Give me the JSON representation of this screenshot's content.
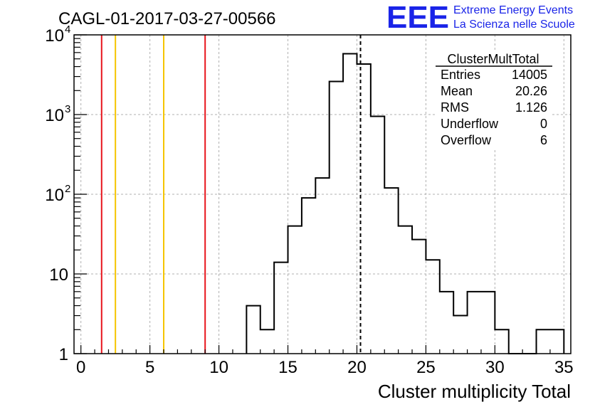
{
  "header": {
    "run_title": "CAGL-01-2017-03-27-00566",
    "logo_text": "EEE",
    "project_line1": "Extreme Energy Events",
    "project_line2": "La Scienza nelle Scuole"
  },
  "stats_box": {
    "title": "ClusterMultTotal",
    "rows": [
      {
        "label": "Entries",
        "value": "14005"
      },
      {
        "label": "Mean",
        "value": "20.26"
      },
      {
        "label": "RMS",
        "value": "1.126"
      },
      {
        "label": "Underflow",
        "value": "0"
      },
      {
        "label": "Overflow",
        "value": "6"
      }
    ]
  },
  "colors": {
    "histogram": "#000000",
    "grid": "#b0b0b0",
    "red_lines": "#e8141c",
    "yellow_lines": "#f5c400",
    "mean_line": "#000000",
    "logo": "#1a24e8",
    "project_text": "#1a24e8"
  },
  "chart_data": {
    "type": "histogram",
    "xlabel": "Cluster multiplicity Total",
    "ylabel": "",
    "xlim": [
      -0.5,
      35.5
    ],
    "ylim": [
      1,
      10000
    ],
    "log_y": true,
    "grid": true,
    "bin_width": 1,
    "bins": [
      {
        "x": 12.5,
        "count": 4
      },
      {
        "x": 13.5,
        "count": 2
      },
      {
        "x": 14.5,
        "count": 14
      },
      {
        "x": 15.5,
        "count": 40
      },
      {
        "x": 16.5,
        "count": 90
      },
      {
        "x": 17.5,
        "count": 160
      },
      {
        "x": 18.5,
        "count": 2600
      },
      {
        "x": 19.5,
        "count": 5800
      },
      {
        "x": 20.5,
        "count": 4300
      },
      {
        "x": 21.5,
        "count": 950
      },
      {
        "x": 22.5,
        "count": 120
      },
      {
        "x": 23.5,
        "count": 40
      },
      {
        "x": 24.5,
        "count": 27
      },
      {
        "x": 25.5,
        "count": 15
      },
      {
        "x": 26.5,
        "count": 6
      },
      {
        "x": 27.5,
        "count": 3
      },
      {
        "x": 28.5,
        "count": 6
      },
      {
        "x": 29.5,
        "count": 6
      },
      {
        "x": 30.5,
        "count": 2
      },
      {
        "x": 31.5,
        "count": 1
      },
      {
        "x": 32.5,
        "count": 1
      },
      {
        "x": 33.5,
        "count": 2
      },
      {
        "x": 34.5,
        "count": 2
      }
    ],
    "x_ticks": [
      {
        "value": 0,
        "label": "0"
      },
      {
        "value": 5,
        "label": "5"
      },
      {
        "value": 10,
        "label": "10"
      },
      {
        "value": 15,
        "label": "15"
      },
      {
        "value": 20,
        "label": "20"
      },
      {
        "value": 25,
        "label": "25"
      },
      {
        "value": 30,
        "label": "30"
      },
      {
        "value": 35,
        "label": "35"
      }
    ],
    "y_ticks": [
      {
        "value": 1,
        "label": "1"
      },
      {
        "value": 10,
        "label": "10"
      },
      {
        "value": 100,
        "label": "10",
        "exp": "2"
      },
      {
        "value": 1000,
        "label": "10",
        "exp": "3"
      },
      {
        "value": 10000,
        "label": "10",
        "exp": "4"
      }
    ],
    "vertical_lines": [
      {
        "x": 1.5,
        "color": "red"
      },
      {
        "x": 2.5,
        "color": "yellow"
      },
      {
        "x": 6.0,
        "color": "yellow"
      },
      {
        "x": 9.0,
        "color": "red"
      }
    ],
    "mean_marker": 20.26
  }
}
